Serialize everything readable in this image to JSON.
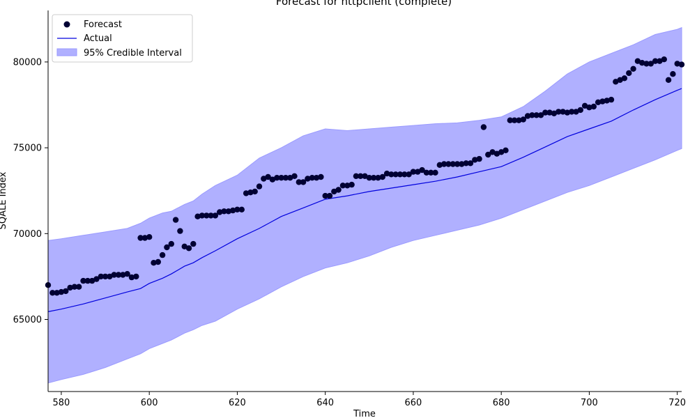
{
  "chart_data": {
    "type": "line",
    "title": "Forecast for httpclient (complete)",
    "xlabel": "Time",
    "ylabel": "SQALE Index",
    "xlim": [
      577,
      721
    ],
    "ylim": [
      60800,
      83000
    ],
    "grid": false,
    "legend_position": "top-left",
    "xticks": [
      580,
      600,
      620,
      640,
      660,
      680,
      700,
      720
    ],
    "xtick_labels": [
      "580",
      "600",
      "620",
      "640",
      "660",
      "680",
      "700",
      "720"
    ],
    "yticks": [
      65000,
      70000,
      75000,
      80000
    ],
    "ytick_labels": [
      "65000",
      "70000",
      "75000",
      "80000"
    ],
    "legend": {
      "forecast_label": "Forecast",
      "actual_label": "Actual",
      "interval_label": "95% Credible Interval"
    },
    "colors": {
      "forecast": "#000033",
      "actual": "#0000dd",
      "interval_fill": "#b0b0ff",
      "interval_edge": "#9a9aff"
    },
    "series": [
      {
        "name": "Actual",
        "x": [
          577,
          580,
          585,
          590,
          595,
          598,
          600,
          603,
          605,
          608,
          610,
          612,
          615,
          620,
          625,
          630,
          635,
          640,
          645,
          650,
          655,
          660,
          665,
          670,
          675,
          680,
          685,
          690,
          695,
          700,
          705,
          710,
          715,
          720,
          721
        ],
        "values": [
          65450,
          65600,
          65900,
          66250,
          66600,
          66800,
          67100,
          67400,
          67650,
          68100,
          68300,
          68600,
          69000,
          69700,
          70300,
          71000,
          71500,
          72000,
          72200,
          72450,
          72650,
          72850,
          73050,
          73300,
          73600,
          73900,
          74450,
          75050,
          75650,
          76100,
          76550,
          77200,
          77800,
          78350,
          78450
        ]
      },
      {
        "name": "95% Credible Interval",
        "x": [
          577,
          580,
          585,
          590,
          595,
          598,
          600,
          603,
          605,
          608,
          610,
          612,
          615,
          620,
          625,
          630,
          635,
          640,
          645,
          650,
          655,
          660,
          665,
          670,
          675,
          680,
          685,
          690,
          695,
          700,
          705,
          710,
          715,
          720,
          721
        ],
        "lower": [
          61300,
          61500,
          61800,
          62200,
          62700,
          63000,
          63300,
          63600,
          63800,
          64200,
          64400,
          64650,
          64900,
          65600,
          66200,
          66900,
          67500,
          68000,
          68300,
          68700,
          69200,
          69600,
          69900,
          70200,
          70500,
          70900,
          71400,
          71900,
          72400,
          72800,
          73300,
          73800,
          74300,
          74850,
          74950
        ],
        "upper": [
          69600,
          69700,
          69900,
          70100,
          70300,
          70600,
          70900,
          71200,
          71300,
          71700,
          71900,
          72300,
          72800,
          73400,
          74400,
          75000,
          75700,
          76100,
          76000,
          76100,
          76200,
          76300,
          76400,
          76450,
          76600,
          76800,
          77400,
          78300,
          79300,
          80000,
          80500,
          81000,
          81600,
          81900,
          82000
        ]
      },
      {
        "name": "Forecast",
        "x": [
          577,
          578,
          579,
          580,
          581,
          582,
          583,
          584,
          585,
          586,
          587,
          588,
          589,
          590,
          591,
          592,
          593,
          594,
          595,
          596,
          597,
          598,
          599,
          600,
          601,
          602,
          603,
          604,
          605,
          606,
          607,
          608,
          609,
          610,
          611,
          612,
          613,
          614,
          615,
          616,
          617,
          618,
          619,
          620,
          621,
          622,
          623,
          624,
          625,
          626,
          627,
          628,
          629,
          630,
          631,
          632,
          633,
          634,
          635,
          636,
          637,
          638,
          639,
          640,
          641,
          642,
          643,
          644,
          645,
          646,
          647,
          648,
          649,
          650,
          651,
          652,
          653,
          654,
          655,
          656,
          657,
          658,
          659,
          660,
          661,
          662,
          663,
          664,
          665,
          666,
          667,
          668,
          669,
          670,
          671,
          672,
          673,
          674,
          675,
          676,
          677,
          678,
          679,
          680,
          681,
          682,
          683,
          684,
          685,
          686,
          687,
          688,
          689,
          690,
          691,
          692,
          693,
          694,
          695,
          696,
          697,
          698,
          699,
          700,
          701,
          702,
          703,
          704,
          705,
          706,
          707,
          708,
          709,
          710,
          711,
          712,
          713,
          714,
          715,
          716,
          717,
          718,
          719,
          720,
          721
        ],
        "values": [
          67000,
          66550,
          66550,
          66600,
          66650,
          66850,
          66900,
          66900,
          67250,
          67250,
          67250,
          67350,
          67500,
          67500,
          67500,
          67600,
          67600,
          67600,
          67650,
          67450,
          67500,
          69750,
          69750,
          69800,
          68300,
          68350,
          68750,
          69200,
          69400,
          70800,
          70150,
          69250,
          69150,
          69400,
          71000,
          71050,
          71050,
          71050,
          71050,
          71250,
          71300,
          71300,
          71350,
          71400,
          71400,
          72350,
          72400,
          72450,
          72750,
          73200,
          73300,
          73150,
          73250,
          73250,
          73250,
          73250,
          73350,
          73000,
          73000,
          73200,
          73250,
          73250,
          73300,
          72200,
          72200,
          72450,
          72550,
          72800,
          72800,
          72850,
          73350,
          73350,
          73350,
          73250,
          73250,
          73250,
          73300,
          73500,
          73450,
          73450,
          73450,
          73450,
          73450,
          73600,
          73600,
          73700,
          73550,
          73550,
          73550,
          74000,
          74050,
          74050,
          74050,
          74050,
          74050,
          74100,
          74100,
          74300,
          74350,
          76200,
          74600,
          74750,
          74650,
          74750,
          74850,
          76600,
          76600,
          76600,
          76650,
          76850,
          76900,
          76900,
          76900,
          77050,
          77050,
          77000,
          77100,
          77100,
          77050,
          77100,
          77100,
          77200,
          77450,
          77350,
          77400,
          77650,
          77700,
          77750,
          77800,
          78850,
          78950,
          79050,
          79350,
          79600,
          80050,
          79950,
          79900,
          79900,
          80050,
          80050,
          80150,
          78950,
          79300,
          79900,
          79850
        ]
      }
    ]
  }
}
